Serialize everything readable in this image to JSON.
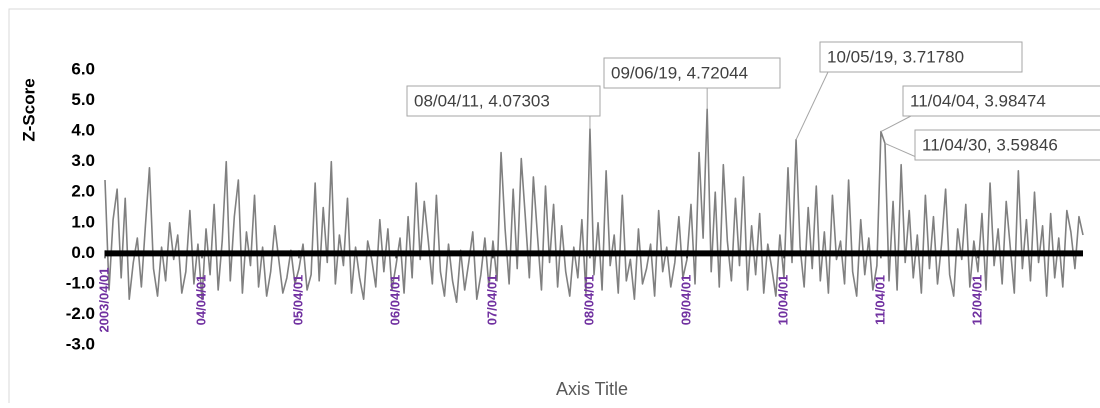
{
  "chart_data": {
    "type": "line",
    "y_label": "Z-Score",
    "x_label": "Axis Title",
    "ylim": [
      -3,
      6
    ],
    "yticks": [
      {
        "value": -3,
        "label": "-3.0"
      },
      {
        "value": -2,
        "label": "-2.0"
      },
      {
        "value": -1,
        "label": "-1.0"
      },
      {
        "value": 0,
        "label": "0.0"
      },
      {
        "value": 1,
        "label": "1.0"
      },
      {
        "value": 2,
        "label": "2.0"
      },
      {
        "value": 3,
        "label": "3.0"
      },
      {
        "value": 4,
        "label": "4.0"
      },
      {
        "value": 5,
        "label": "5.0"
      },
      {
        "value": 6,
        "label": "6.0"
      }
    ],
    "color": "#808080",
    "grid": false,
    "categories": [
      "2003/04/01",
      null,
      null,
      null,
      null,
      null,
      null,
      null,
      null,
      null,
      null,
      null,
      null,
      null,
      null,
      null,
      null,
      null,
      null,
      null,
      null,
      null,
      null,
      null,
      "04/04/01",
      null,
      null,
      null,
      null,
      null,
      null,
      null,
      null,
      null,
      null,
      null,
      null,
      null,
      null,
      null,
      null,
      null,
      null,
      null,
      null,
      null,
      null,
      null,
      "05/04/01",
      null,
      null,
      null,
      null,
      null,
      null,
      null,
      null,
      null,
      null,
      null,
      null,
      null,
      null,
      null,
      null,
      null,
      null,
      null,
      null,
      null,
      null,
      null,
      "06/04/01",
      null,
      null,
      null,
      null,
      null,
      null,
      null,
      null,
      null,
      null,
      null,
      null,
      null,
      null,
      null,
      null,
      null,
      null,
      null,
      null,
      null,
      null,
      null,
      "07/04/01",
      null,
      null,
      null,
      null,
      null,
      null,
      null,
      null,
      null,
      null,
      null,
      null,
      null,
      null,
      null,
      null,
      null,
      null,
      null,
      null,
      null,
      null,
      null,
      "08/04/01",
      null,
      null,
      null,
      null,
      null,
      null,
      null,
      null,
      null,
      null,
      null,
      null,
      null,
      null,
      null,
      null,
      null,
      null,
      null,
      null,
      null,
      null,
      null,
      "09/04/01",
      null,
      null,
      null,
      null,
      null,
      null,
      null,
      null,
      null,
      null,
      null,
      null,
      null,
      null,
      null,
      null,
      null,
      null,
      null,
      null,
      null,
      null,
      null,
      "10/04/01",
      null,
      null,
      null,
      null,
      null,
      null,
      null,
      null,
      null,
      null,
      null,
      null,
      null,
      null,
      null,
      null,
      null,
      null,
      null,
      null,
      null,
      null,
      null,
      "11/04/01",
      null,
      null,
      null,
      null,
      null,
      null,
      null,
      null,
      null,
      null,
      null,
      null,
      null,
      null,
      null,
      null,
      null,
      null,
      null,
      null,
      null,
      null,
      null,
      "12/04/01",
      null,
      null,
      null,
      null,
      null,
      null,
      null,
      null,
      null,
      null,
      null,
      null,
      null,
      null,
      null,
      null,
      null,
      null,
      null,
      null,
      null,
      null,
      null,
      null,
      null,
      null
    ],
    "values": [
      2.4,
      -1.2,
      1.1,
      2.1,
      -0.8,
      1.8,
      -1.5,
      -0.3,
      0.5,
      -1.1,
      0.9,
      2.8,
      -0.5,
      -1.4,
      0.2,
      -0.9,
      1.0,
      -0.2,
      0.6,
      -1.3,
      -0.6,
      1.4,
      -1.0,
      0.3,
      -1.5,
      0.8,
      -0.7,
      1.6,
      -1.2,
      0.4,
      3.0,
      -0.9,
      1.2,
      2.4,
      -1.3,
      0.7,
      -0.4,
      1.9,
      -1.1,
      0.2,
      -1.4,
      -0.6,
      0.9,
      -0.2,
      -1.3,
      -0.8,
      0.1,
      -1.0,
      -0.5,
      0.3,
      -1.2,
      -0.7,
      2.3,
      -0.9,
      1.5,
      -0.3,
      3.0,
      -1.0,
      0.6,
      -0.4,
      1.8,
      -1.3,
      0.2,
      -0.8,
      -1.5,
      0.4,
      -0.2,
      -1.1,
      1.1,
      -0.6,
      0.8,
      -1.2,
      -0.4,
      0.5,
      -1.3,
      1.2,
      -0.8,
      2.3,
      -0.2,
      1.7,
      0.4,
      -1.0,
      1.9,
      -0.6,
      -1.4,
      0.3,
      -0.9,
      -1.6,
      0.1,
      -1.2,
      -0.3,
      0.7,
      -1.5,
      -0.7,
      0.5,
      -1.1,
      0.4,
      -0.9,
      3.3,
      0.8,
      -1.0,
      2.1,
      -0.5,
      3.1,
      1.2,
      -0.8,
      2.5,
      0.6,
      -1.2,
      2.2,
      -0.3,
      1.6,
      -1.1,
      0.9,
      -0.6,
      -1.4,
      0.2,
      -0.8,
      1.1,
      -1.3,
      4.07303,
      -0.7,
      1.0,
      -1.2,
      2.7,
      -0.4,
      0.6,
      -1.3,
      1.9,
      -0.9,
      -0.2,
      -1.5,
      0.8,
      -1.0,
      -0.5,
      0.3,
      -1.4,
      1.4,
      -0.6,
      0.2,
      -1.1,
      -0.3,
      1.2,
      -0.8,
      -0.2,
      1.6,
      -1.0,
      3.3,
      0.5,
      4.72044,
      -0.6,
      2.0,
      -1.1,
      2.9,
      0.4,
      -0.9,
      1.8,
      -0.4,
      2.5,
      -1.2,
      0.9,
      -0.7,
      1.3,
      -1.3,
      0.3,
      -0.5,
      -1.4,
      0.6,
      -0.8,
      2.8,
      -0.3,
      3.7178,
      0.2,
      -1.1,
      1.5,
      -0.5,
      2.2,
      -0.9,
      0.7,
      -1.3,
      1.9,
      -0.2,
      0.4,
      -1.0,
      2.4,
      -0.6,
      -1.4,
      1.1,
      -0.7,
      0.5,
      -1.2,
      -0.4,
      3.98474,
      3.59846,
      -0.9,
      1.7,
      -1.2,
      2.9,
      -0.3,
      1.4,
      -0.8,
      0.6,
      -1.3,
      1.9,
      -0.5,
      1.2,
      -1.0,
      0.3,
      2.1,
      -0.7,
      -1.4,
      0.8,
      -0.2,
      1.6,
      -1.1,
      0.4,
      -0.6,
      1.3,
      -1.2,
      2.3,
      -0.4,
      0.8,
      -1.0,
      1.7,
      0.2,
      -1.3,
      2.7,
      -0.5,
      1.1,
      -0.9,
      2.0,
      -0.3,
      0.9,
      -1.4,
      1.3,
      -0.8,
      0.5,
      -1.1,
      1.4,
      0.7,
      -0.5,
      1.2,
      0.6
    ],
    "value_labels": [
      null,
      null,
      null,
      null,
      null,
      null,
      null,
      null,
      null,
      null,
      null,
      null,
      null,
      null,
      null,
      null,
      null,
      null,
      null,
      null,
      null,
      null,
      null,
      null,
      null,
      null,
      null,
      null,
      null,
      null,
      null,
      null,
      null,
      null,
      null,
      null,
      null,
      null,
      null,
      null,
      null,
      null,
      null,
      null,
      null,
      null,
      null,
      null,
      null,
      null,
      null,
      null,
      null,
      null,
      null,
      null,
      null,
      null,
      null,
      null,
      null,
      null,
      null,
      null,
      null,
      null,
      null,
      null,
      null,
      null,
      null,
      null,
      null,
      null,
      null,
      null,
      null,
      null,
      null,
      null,
      null,
      null,
      null,
      null,
      null,
      null,
      null,
      null,
      null,
      null,
      null,
      null,
      null,
      null,
      null,
      null,
      null,
      null,
      null,
      null,
      null,
      null,
      null,
      null,
      null,
      null,
      null,
      null,
      null,
      null,
      null,
      null,
      null,
      null,
      null,
      null,
      null,
      null,
      null,
      null,
      "08/04/11, 4.07303",
      null,
      null,
      null,
      null,
      null,
      null,
      null,
      null,
      null,
      null,
      null,
      null,
      null,
      null,
      null,
      null,
      null,
      null,
      null,
      null,
      null,
      null,
      null,
      null,
      null,
      null,
      null,
      null,
      "09/06/19, 4.72044",
      null,
      null,
      null,
      null,
      null,
      null,
      null,
      null,
      null,
      null,
      null,
      null,
      null,
      null,
      null,
      null,
      null,
      null,
      null,
      null,
      null,
      "10/05/19, 3.71780",
      null,
      null,
      null,
      null,
      null,
      null,
      null,
      null,
      null,
      null,
      null,
      null,
      null,
      null,
      null,
      null,
      null,
      null,
      null,
      null,
      "11/04/04, 3.98474",
      "11/04/30, 3.59846",
      null,
      null,
      null,
      null,
      null,
      null,
      null,
      null,
      null,
      null,
      null,
      null,
      null,
      null,
      null,
      null,
      null,
      null,
      null,
      null,
      null,
      null,
      null,
      null,
      null,
      null,
      null,
      null,
      null,
      null,
      null,
      null,
      null,
      null,
      null,
      null,
      null,
      null,
      null,
      null,
      null,
      null,
      null,
      null,
      null,
      null,
      null,
      null,
      null
    ]
  }
}
